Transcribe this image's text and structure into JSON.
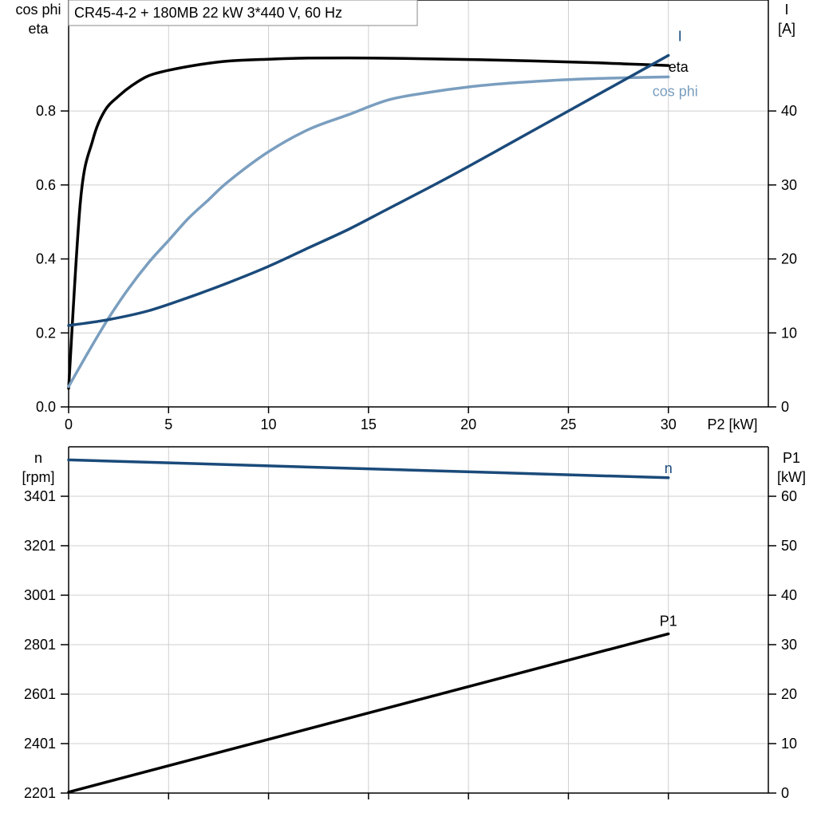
{
  "colors": {
    "I": "#1a4a7a",
    "cos_phi": "#7a9ebf",
    "eta": "#000000",
    "n": "#1a4a7a",
    "P1": "#000000"
  },
  "chart_data": [
    {
      "type": "line",
      "title": "CR45-4-2 + 180MB   22 kW   3*440 V, 60 Hz",
      "xlabel": "P2 [kW]",
      "xlim": [
        0,
        35
      ],
      "xticks": [
        0,
        5,
        10,
        15,
        20,
        25,
        30
      ],
      "y_left": {
        "label_line1": "cos phi",
        "label_line2": "eta",
        "lim": [
          0,
          1.1
        ],
        "ticks": [
          0.0,
          0.2,
          0.4,
          0.6,
          0.8
        ],
        "tick_labels": [
          "0.0",
          "0.2",
          "0.4",
          "0.6",
          "0.8"
        ]
      },
      "y_right": {
        "label_line1": "I",
        "label_line2": "[A]",
        "lim": [
          0,
          55
        ],
        "ticks": [
          0,
          10,
          20,
          30,
          40
        ],
        "tick_labels": [
          "0",
          "10",
          "20",
          "30",
          "40"
        ]
      },
      "grid": true,
      "series": [
        {
          "name": "eta",
          "axis": "left",
          "color": "#000000",
          "x": [
            0,
            0.6,
            1.2,
            1.8,
            2.5,
            3.2,
            4,
            5,
            6.5,
            8,
            10,
            12,
            15,
            18,
            22,
            26,
            28,
            30
          ],
          "y": [
            0.05,
            0.56,
            0.72,
            0.8,
            0.84,
            0.87,
            0.895,
            0.91,
            0.925,
            0.935,
            0.94,
            0.943,
            0.943,
            0.941,
            0.937,
            0.931,
            0.927,
            0.923
          ]
        },
        {
          "name": "cos phi",
          "axis": "left",
          "color": "#7a9ebf",
          "x": [
            0,
            1,
            2,
            3,
            4,
            5,
            6,
            7,
            8,
            10,
            12,
            14,
            16,
            18,
            20,
            22,
            24,
            26,
            28,
            30
          ],
          "y": [
            0.055,
            0.15,
            0.24,
            0.32,
            0.39,
            0.45,
            0.51,
            0.56,
            0.61,
            0.69,
            0.75,
            0.79,
            0.83,
            0.85,
            0.865,
            0.875,
            0.882,
            0.887,
            0.89,
            0.892
          ]
        },
        {
          "name": "I",
          "axis": "right",
          "color": "#1a4a7a",
          "x": [
            0,
            2,
            4,
            6,
            8,
            10,
            12,
            14,
            16,
            18,
            20,
            22,
            24,
            26,
            28,
            30
          ],
          "y": [
            11,
            11.8,
            13,
            14.8,
            16.8,
            19,
            21.5,
            24,
            26.8,
            29.6,
            32.5,
            35.5,
            38.5,
            41.5,
            44.5,
            47.5
          ]
        }
      ],
      "curve_labels": [
        {
          "text": "I",
          "series": "I"
        },
        {
          "text": "eta",
          "series": "eta"
        },
        {
          "text": "cos phi",
          "series": "cos phi"
        }
      ]
    },
    {
      "type": "line",
      "xlim": [
        0,
        35
      ],
      "xticks": [
        0,
        5,
        10,
        15,
        20,
        25,
        30
      ],
      "y_left": {
        "label_line1": "n",
        "label_line2": "[rpm]",
        "lim": [
          2201,
          3601
        ],
        "ticks": [
          2201,
          2401,
          2601,
          2801,
          3001,
          3201,
          3401
        ],
        "tick_labels": [
          "2201",
          "2401",
          "2601",
          "2801",
          "3001",
          "3201",
          "3401"
        ]
      },
      "y_right": {
        "label_line1": "P1",
        "label_line2": "[kW]",
        "lim": [
          0,
          70
        ],
        "ticks": [
          0,
          10,
          20,
          30,
          40,
          50,
          60
        ],
        "tick_labels": [
          "0",
          "10",
          "20",
          "30",
          "40",
          "50",
          "60"
        ]
      },
      "grid": true,
      "series": [
        {
          "name": "n",
          "axis": "left",
          "color": "#1a4a7a",
          "x": [
            0,
            30
          ],
          "y": [
            3548,
            3476
          ]
        },
        {
          "name": "P1",
          "axis": "right",
          "color": "#000000",
          "x": [
            0,
            30
          ],
          "y": [
            0.2,
            32.2
          ]
        }
      ],
      "curve_labels": [
        {
          "text": "n",
          "series": "n"
        },
        {
          "text": "P1",
          "series": "P1"
        }
      ]
    }
  ]
}
